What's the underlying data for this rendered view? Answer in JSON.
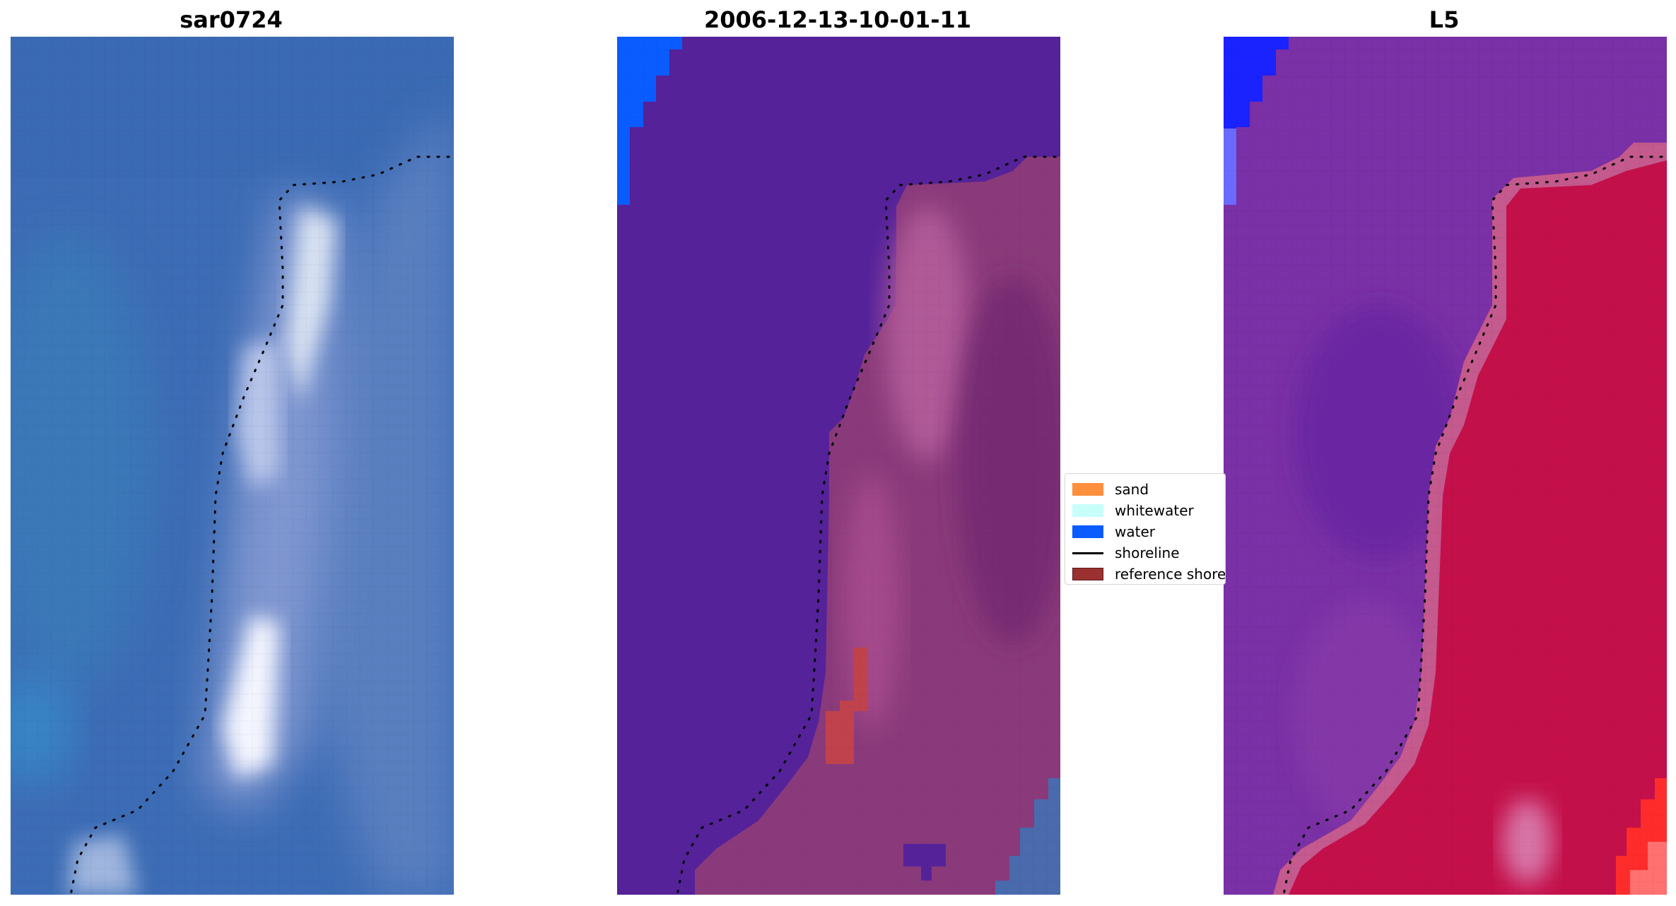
{
  "panels": [
    {
      "title": "sar0724"
    },
    {
      "title": "2006-12-13-10-01-11"
    },
    {
      "title": "L5"
    }
  ],
  "legend": {
    "items": [
      {
        "label": "sand",
        "color": "#fe8f3c"
      },
      {
        "label": "whitewater",
        "color": "#c8fffa"
      },
      {
        "label": "water",
        "color": "#0a5cff"
      },
      {
        "label": "shoreline",
        "color": "#000000"
      },
      {
        "label": "reference shore",
        "color": "#9b3030"
      }
    ]
  },
  "colors": {
    "water_rgb": "#3a6cb8",
    "water_classified": "#55229a",
    "land_classified": "#8a3a7a",
    "water_nir": "#7a2fa8",
    "land_nir": "#c71042"
  }
}
